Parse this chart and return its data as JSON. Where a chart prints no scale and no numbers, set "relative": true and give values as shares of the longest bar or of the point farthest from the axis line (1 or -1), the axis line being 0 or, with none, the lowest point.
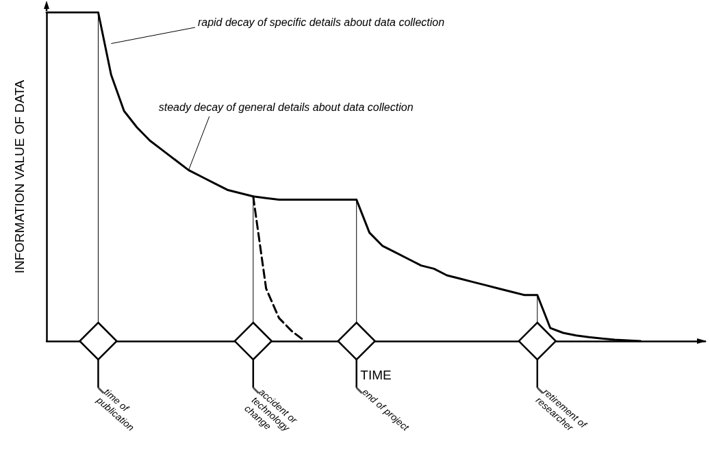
{
  "chart_data": {
    "type": "line",
    "relative": true,
    "xlabel": "TIME",
    "ylabel": "INFORMATION VALUE OF DATA",
    "marker": "none",
    "categories": [
      null,
      null,
      null,
      null,
      null,
      null,
      null,
      null,
      null,
      null,
      null,
      null,
      null,
      null,
      null,
      null,
      null,
      null,
      null,
      null,
      null,
      null,
      null,
      null,
      null,
      null,
      null,
      null,
      null,
      null,
      null,
      null,
      null,
      null,
      null,
      null,
      null,
      null,
      null,
      null,
      null,
      null,
      null,
      null,
      null,
      null,
      null,
      null,
      null,
      null,
      null,
      null
    ],
    "series": [
      {
        "color": "#000000",
        "line_style": "solid",
        "values": [
          1,
          1,
          1,
          1,
          1,
          0.81,
          0.7,
          0.65,
          0.61,
          0.58,
          0.55,
          0.52,
          0.5,
          0.48,
          0.46,
          0.45,
          0.44,
          0.435,
          0.43,
          0.43,
          0.43,
          0.43,
          0.43,
          0.43,
          0.43,
          0.33,
          0.29,
          0.27,
          0.25,
          0.23,
          0.22,
          0.2,
          0.19,
          0.18,
          0.17,
          0.16,
          0.15,
          0.14,
          0.14,
          0.04,
          0.025,
          0.017,
          0.012,
          0.008,
          0.004,
          0.002,
          0,
          null,
          null,
          null,
          null,
          null
        ]
      },
      {
        "color": "#000000",
        "line_style": "dashed",
        "values": [
          null,
          null,
          null,
          null,
          null,
          null,
          null,
          null,
          null,
          null,
          null,
          null,
          null,
          null,
          null,
          null,
          0.44,
          0.16,
          0.07,
          0.03,
          0,
          null,
          null,
          null,
          null,
          null,
          null,
          null,
          null,
          null,
          null,
          null,
          null,
          null,
          null,
          null,
          null,
          null,
          null,
          null,
          null,
          null,
          null,
          null,
          null,
          null,
          null,
          null,
          null,
          null,
          null,
          null
        ]
      }
    ],
    "annotations": [
      "rapid decay of specific details about data collection",
      "steady decay of general details about data collection",
      "time of publication",
      "accident or technology change",
      "end of project",
      "retirement of researcher"
    ]
  }
}
